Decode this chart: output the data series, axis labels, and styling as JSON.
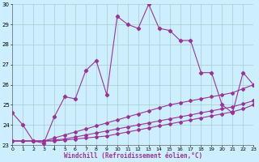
{
  "xlabel": "Windchill (Refroidissement éolien,°C)",
  "hours": [
    0,
    1,
    2,
    3,
    4,
    5,
    6,
    7,
    8,
    9,
    10,
    11,
    12,
    13,
    14,
    15,
    16,
    17,
    18,
    19,
    20,
    21,
    22,
    23
  ],
  "line1": [
    24.6,
    24.0,
    23.2,
    23.1,
    24.4,
    25.4,
    25.3,
    26.7,
    27.2,
    25.5,
    29.4,
    29.0,
    28.8,
    30.0,
    28.8,
    28.7,
    28.2,
    28.2,
    26.6,
    26.6,
    25.0,
    24.6,
    26.6,
    26.0
  ],
  "line2": [
    23.2,
    23.2,
    23.2,
    23.2,
    23.35,
    23.5,
    23.65,
    23.8,
    23.95,
    24.1,
    24.25,
    24.4,
    24.55,
    24.7,
    24.85,
    25.0,
    25.1,
    25.2,
    25.3,
    25.4,
    25.5,
    25.6,
    25.8,
    26.0
  ],
  "line3": [
    23.2,
    23.2,
    23.2,
    23.2,
    23.25,
    23.3,
    23.4,
    23.5,
    23.6,
    23.7,
    23.8,
    23.9,
    24.0,
    24.1,
    24.2,
    24.3,
    24.4,
    24.5,
    24.6,
    24.7,
    24.8,
    24.9,
    25.05,
    25.2
  ],
  "line4": [
    23.2,
    23.2,
    23.2,
    23.2,
    23.2,
    23.25,
    23.3,
    23.35,
    23.4,
    23.45,
    23.55,
    23.65,
    23.75,
    23.85,
    23.95,
    24.05,
    24.15,
    24.25,
    24.35,
    24.45,
    24.55,
    24.65,
    24.8,
    25.0
  ],
  "line_color": "#993399",
  "bg_color": "#cceeff",
  "grid_color": "#aacccc",
  "ylim_min": 23,
  "ylim_max": 30,
  "xlim_min": 0,
  "xlim_max": 23
}
